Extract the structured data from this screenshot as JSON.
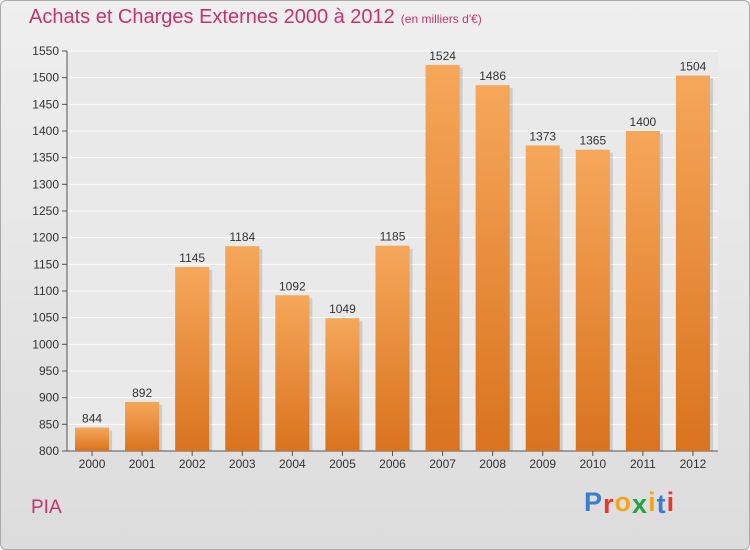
{
  "header": {
    "title": "Achats et Charges Externes 2000 à 2012",
    "subtitle": "(en milliers d'€)"
  },
  "footer": {
    "commune": "PIA",
    "logo": [
      "P",
      "r",
      "o",
      "x",
      "i",
      "t",
      "i"
    ]
  },
  "colors": {
    "accent": "#c8326b",
    "bar_top": "#f6a75a",
    "bar_bottom": "#d9731e",
    "logo": [
      "#3b7bd1",
      "#e23a2c",
      "#f2a51b",
      "#27a145",
      "#f2a51b",
      "#3b7bd1",
      "#e23a2c"
    ]
  },
  "chart_data": {
    "type": "bar",
    "title": "Achats et Charges Externes 2000 à 2012",
    "subtitle": "(en milliers d'€)",
    "categories": [
      "2000",
      "2001",
      "2002",
      "2003",
      "2004",
      "2005",
      "2006",
      "2007",
      "2008",
      "2009",
      "2010",
      "2011",
      "2012"
    ],
    "values": [
      844,
      892,
      1145,
      1184,
      1092,
      1049,
      1185,
      1524,
      1486,
      1373,
      1365,
      1400,
      1504
    ],
    "ylim": [
      800,
      1550
    ],
    "yticks": [
      800,
      850,
      900,
      950,
      1000,
      1050,
      1100,
      1150,
      1200,
      1250,
      1300,
      1350,
      1400,
      1450,
      1500,
      1550
    ],
    "xlabel": "",
    "ylabel": "",
    "grid": true
  }
}
